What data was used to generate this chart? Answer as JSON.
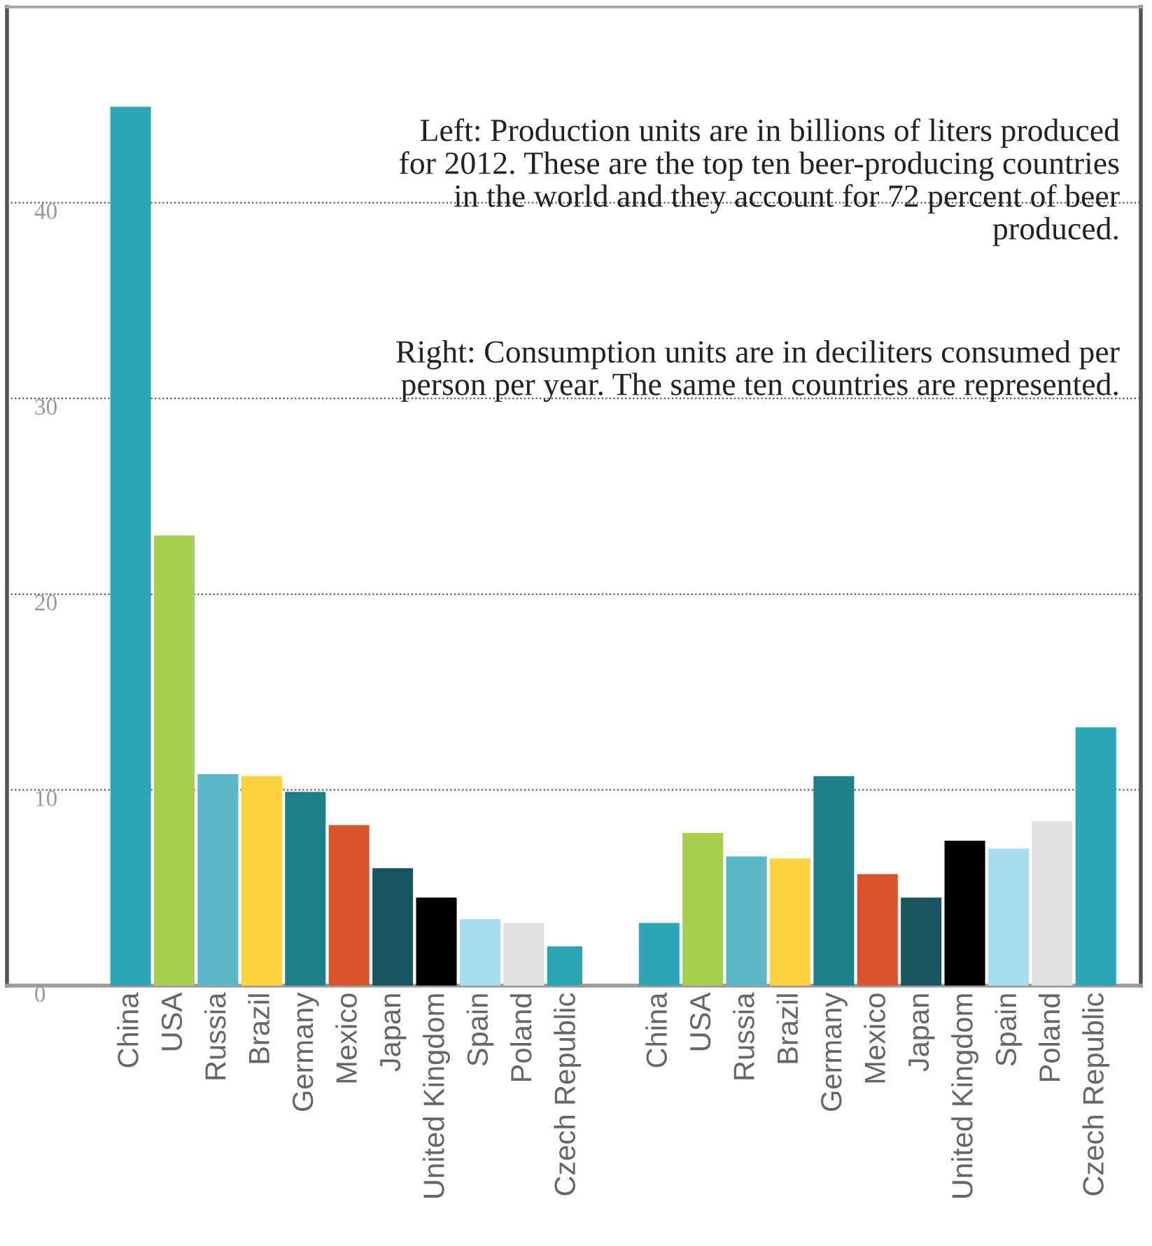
{
  "chart_data": [
    {
      "type": "bar",
      "categories": [
        "China",
        "USA",
        "Russia",
        "Brazil",
        "Germany",
        "Mexico",
        "Japan",
        "United Kingdom",
        "Spain",
        "Poland",
        "Czech Republic"
      ],
      "values": [
        44.9,
        23.0,
        10.8,
        10.7,
        9.9,
        8.2,
        6.0,
        4.5,
        3.4,
        3.2,
        2.0
      ],
      "colors": [
        "#2ca5b4",
        "#a8d04f",
        "#5bb7c5",
        "#fdd33f",
        "#1f7f88",
        "#da522a",
        "#17565f",
        "#000000",
        "#a8ddf0",
        "#e0e0e0",
        "#2ca5b4"
      ],
      "ylim": [
        0,
        50
      ],
      "yticks": [
        0,
        10,
        20,
        30,
        40
      ],
      "grid": "y",
      "annotations": [
        "Left: Production units are in billions of liters produced\nfor 2012. These are the top ten beer-producing countries\nin the world and they account for 72 percent of beer\nproduced.",
        "Right: Consumption units are in deciliters consumed per\nperson per year. The same ten countries are represented."
      ]
    },
    {
      "type": "bar",
      "categories": [
        "China",
        "USA",
        "Russia",
        "Brazil",
        "Germany",
        "Mexico",
        "Japan",
        "United Kingdom",
        "Spain",
        "Poland",
        "Czech Republic"
      ],
      "values": [
        3.2,
        7.8,
        6.6,
        6.5,
        10.7,
        5.7,
        4.5,
        7.4,
        7.0,
        8.4,
        13.2
      ],
      "colors": [
        "#2ca5b4",
        "#a8d04f",
        "#5bb7c5",
        "#fdd33f",
        "#1f7f88",
        "#da522a",
        "#17565f",
        "#000000",
        "#a8ddf0",
        "#e0e0e0",
        "#2ca5b4"
      ],
      "ylim": [
        0,
        50
      ],
      "yticks": [
        0,
        10,
        20,
        30,
        40
      ],
      "grid": "y",
      "tick_labels": "x"
    }
  ]
}
